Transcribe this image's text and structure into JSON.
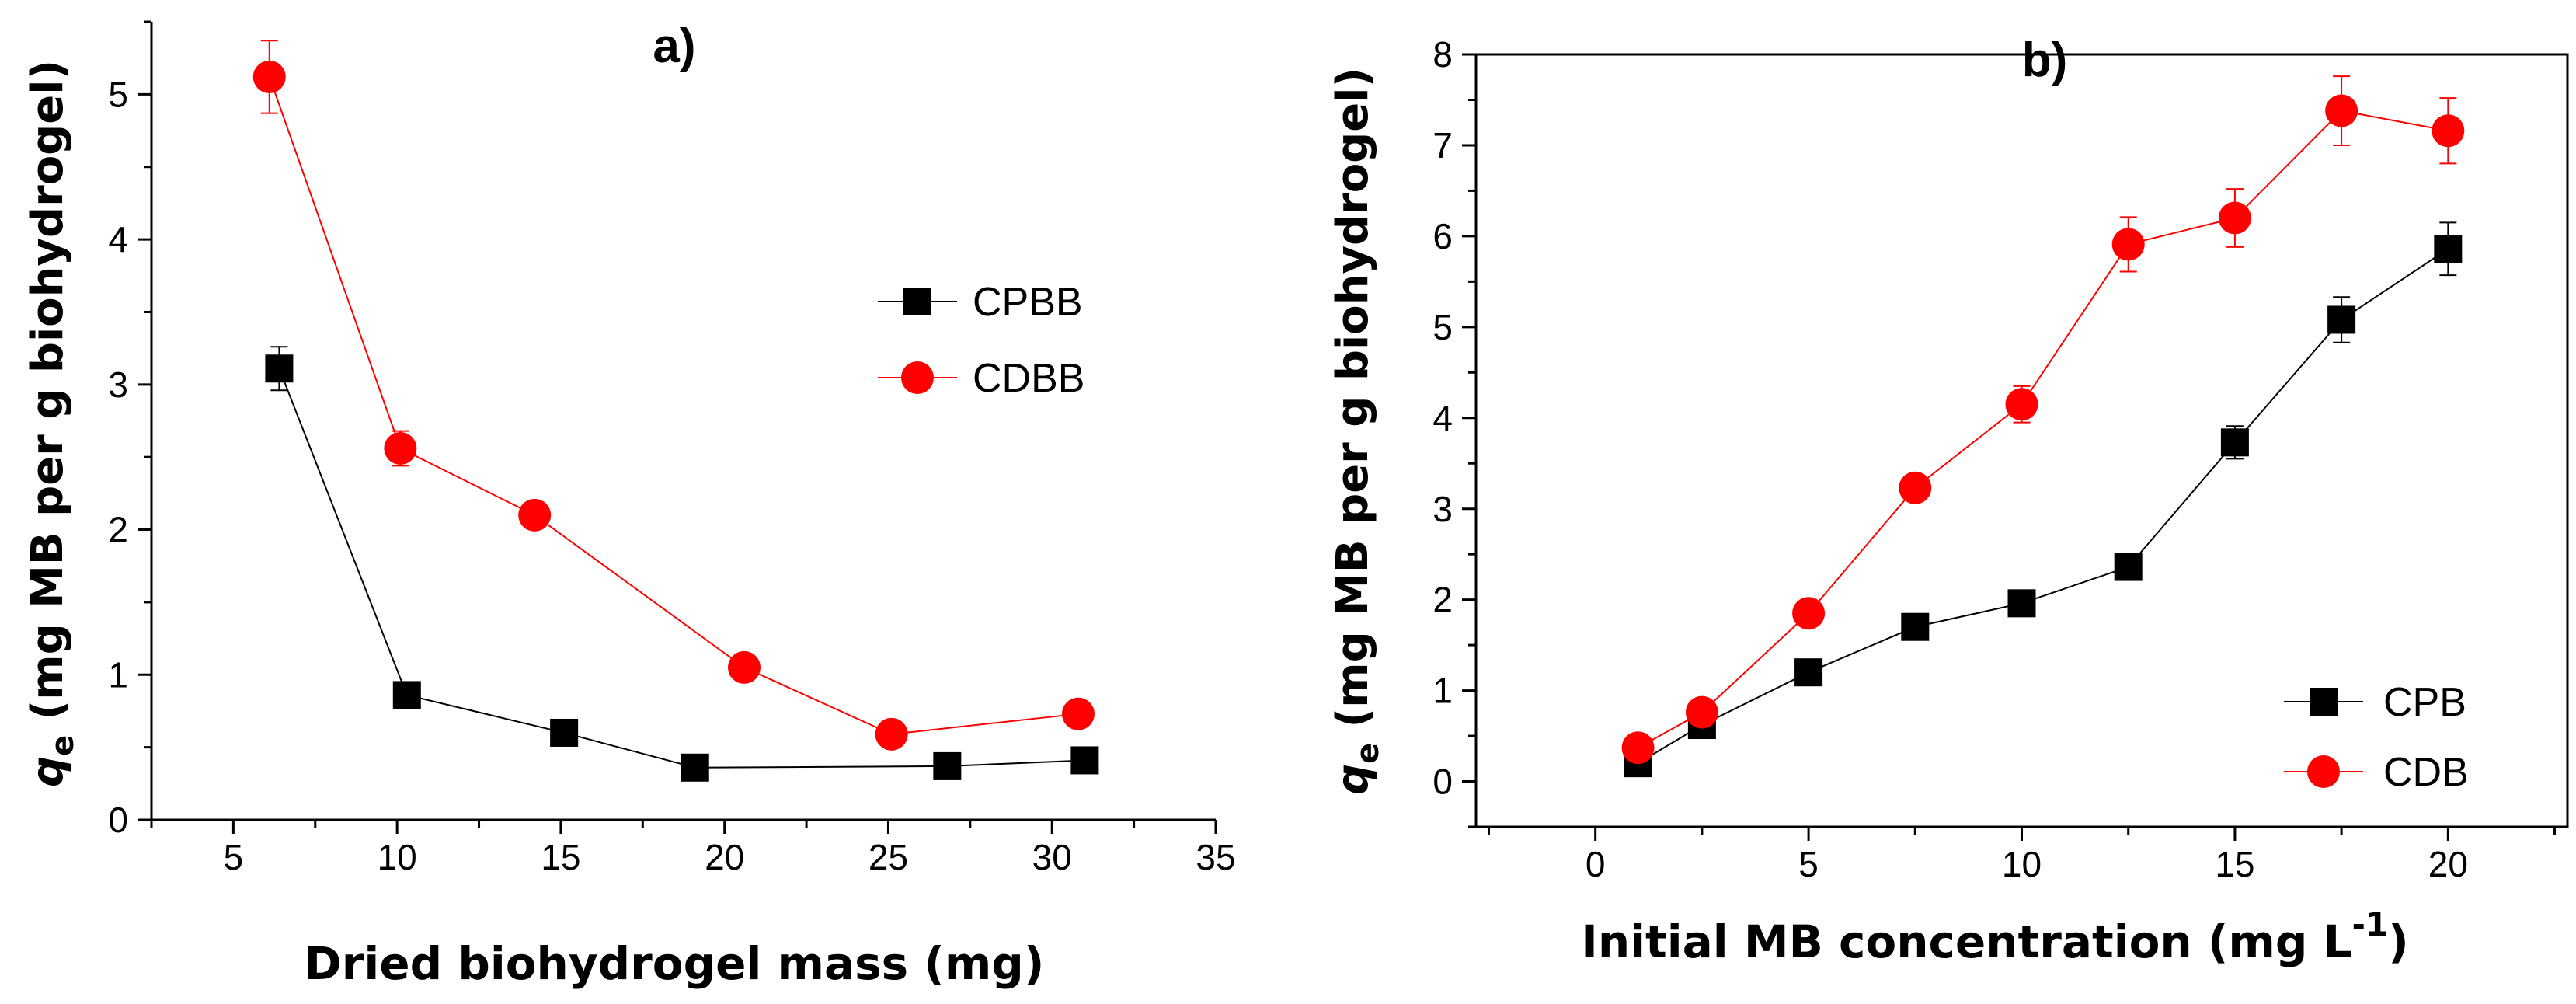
{
  "chart_data": [
    {
      "panel_label": "a)",
      "type": "line",
      "xlabel": "Dried biohydrogel mass (mg)",
      "ylabel_symbol": "q",
      "ylabel_subscript": "e",
      "ylabel_rest": " (mg MB per g biohydrogel)",
      "xlim": [
        2.5,
        35
      ],
      "ylim": [
        0,
        5.5
      ],
      "xticks": [
        5,
        10,
        15,
        20,
        25,
        30,
        35
      ],
      "yticks": [
        0,
        1,
        2,
        3,
        4,
        5
      ],
      "legend_position": "right-center",
      "series": [
        {
          "name": "CPBB",
          "marker": "square",
          "color": "#000000",
          "x": [
            6.4,
            10.3,
            15.1,
            19.1,
            26.8,
            31.0
          ],
          "y": [
            3.11,
            0.86,
            0.6,
            0.36,
            0.37,
            0.41
          ],
          "err": [
            0.15,
            0.04,
            0.03,
            0.02,
            0.02,
            0.02
          ]
        },
        {
          "name": "CDBB",
          "marker": "circle",
          "color": "#ff0000",
          "x": [
            6.1,
            10.1,
            14.2,
            20.6,
            25.1,
            30.8
          ],
          "y": [
            5.12,
            2.56,
            2.1,
            1.05,
            0.59,
            0.73
          ],
          "err": [
            0.25,
            0.12,
            0.07,
            0.04,
            0.03,
            0.03
          ]
        }
      ]
    },
    {
      "panel_label": "b)",
      "type": "line",
      "xlabel": "Initial MB concentration (mg L",
      "xlabel_superscript": "-1",
      "xlabel_close": ")",
      "ylabel_symbol": "q",
      "ylabel_subscript": "e",
      "ylabel_rest": " (mg MB per g biohydrogel)",
      "xlim": [
        -2.8,
        22.8
      ],
      "ylim": [
        -0.5,
        8
      ],
      "xticks": [
        0,
        5,
        10,
        15,
        20
      ],
      "yticks": [
        0,
        1,
        2,
        3,
        4,
        5,
        6,
        7,
        8
      ],
      "legend_position": "bottom-right",
      "series": [
        {
          "name": "CPB",
          "marker": "square",
          "color": "#000000",
          "x": [
            1,
            2.5,
            5,
            7.5,
            10,
            12.5,
            15,
            17.5,
            20
          ],
          "y": [
            0.2,
            0.62,
            1.2,
            1.7,
            1.96,
            2.36,
            3.73,
            5.08,
            5.86
          ],
          "err": [
            0.03,
            0.04,
            0.05,
            0.05,
            0.06,
            0.07,
            0.18,
            0.25,
            0.29
          ]
        },
        {
          "name": "CDB",
          "marker": "circle",
          "color": "#ff0000",
          "x": [
            1,
            2.5,
            5,
            7.5,
            10,
            12.5,
            15,
            17.5,
            20
          ],
          "y": [
            0.37,
            0.76,
            1.85,
            3.23,
            4.15,
            5.91,
            6.2,
            7.38,
            7.16
          ],
          "err": [
            0.03,
            0.04,
            0.06,
            0.07,
            0.2,
            0.3,
            0.32,
            0.38,
            0.36
          ]
        }
      ]
    }
  ]
}
